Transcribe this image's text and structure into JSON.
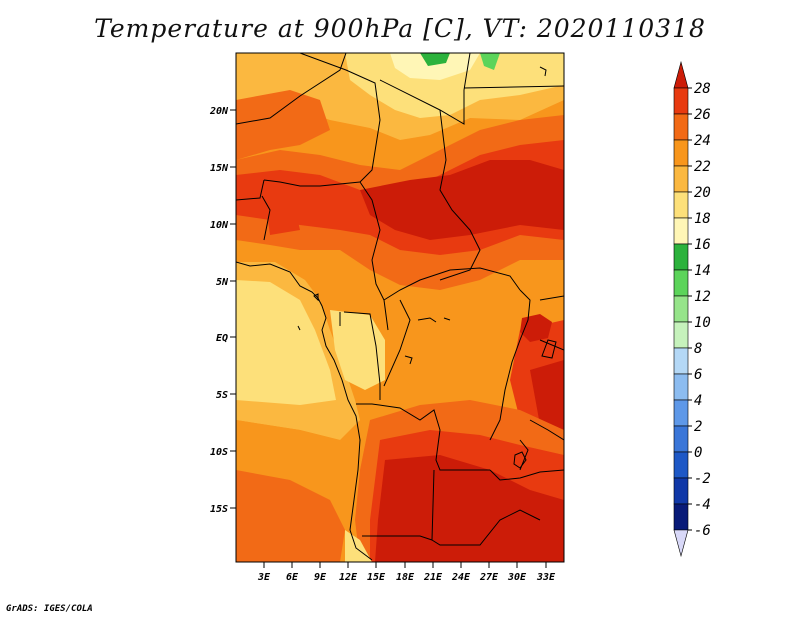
{
  "title": "Temperature at 900hPa [C], VT: 2020110318",
  "footer": "GrADS: IGES/COLA",
  "map": {
    "lat_labels": [
      "20N",
      "15N",
      "10N",
      "5N",
      "EQ",
      "5S",
      "10S",
      "15S"
    ],
    "lon_labels": [
      "3E",
      "6E",
      "9E",
      "12E",
      "15E",
      "18E",
      "21E",
      "24E",
      "27E",
      "30E",
      "33E"
    ]
  },
  "colorbar": {
    "levels": [
      "28",
      "26",
      "24",
      "22",
      "20",
      "18",
      "16",
      "14",
      "12",
      "10",
      "8",
      "6",
      "4",
      "2",
      "0",
      "-2",
      "-4",
      "-6"
    ],
    "colors": [
      "#cc1c08",
      "#e83a10",
      "#f26a16",
      "#f8961c",
      "#fbb840",
      "#fde07a",
      "#fff6b6",
      "#2cb23c",
      "#5cd45a",
      "#96e48a",
      "#c6f2bc",
      "#b4d8f6",
      "#8cbcf0",
      "#5e98e8",
      "#3a76d8",
      "#1e58c6",
      "#1038a8",
      "#081a78",
      "#d8d8f8"
    ]
  }
}
